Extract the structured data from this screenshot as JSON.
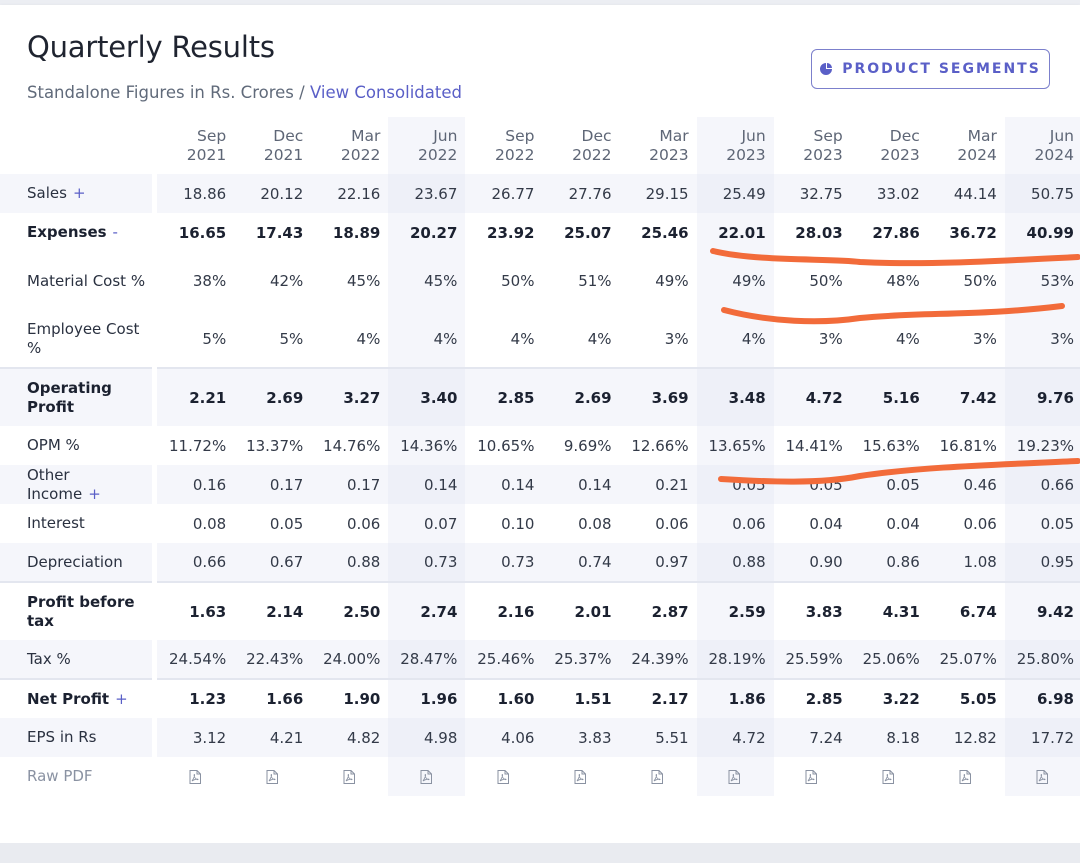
{
  "header": {
    "title": "Quarterly Results",
    "subtitle_prefix": "Standalone Figures in Rs. Crores / ",
    "subtitle_link": "View Consolidated",
    "segments_button": "PRODUCT SEGMENTS"
  },
  "quarters": [
    {
      "month": "Sep",
      "year": "2021"
    },
    {
      "month": "Dec",
      "year": "2021"
    },
    {
      "month": "Mar",
      "year": "2022"
    },
    {
      "month": "Jun",
      "year": "2022"
    },
    {
      "month": "Sep",
      "year": "2022"
    },
    {
      "month": "Dec",
      "year": "2022"
    },
    {
      "month": "Mar",
      "year": "2023"
    },
    {
      "month": "Jun",
      "year": "2023"
    },
    {
      "month": "Sep",
      "year": "2023"
    },
    {
      "month": "Dec",
      "year": "2023"
    },
    {
      "month": "Mar",
      "year": "2024"
    },
    {
      "month": "Jun",
      "year": "2024"
    }
  ],
  "rows": [
    {
      "label": "Sales",
      "suffix": "+",
      "style": "alt",
      "values": [
        "18.86",
        "20.12",
        "22.16",
        "23.67",
        "26.77",
        "27.76",
        "29.15",
        "25.49",
        "32.75",
        "33.02",
        "44.14",
        "50.75"
      ]
    },
    {
      "label": "Expenses",
      "suffix": "-",
      "style": "bold",
      "values": [
        "16.65",
        "17.43",
        "18.89",
        "20.27",
        "23.92",
        "25.07",
        "25.46",
        "22.01",
        "28.03",
        "27.86",
        "36.72",
        "40.99"
      ]
    },
    {
      "label": "Material Cost %",
      "suffix": "",
      "style": "tall",
      "values": [
        "38%",
        "42%",
        "45%",
        "45%",
        "50%",
        "51%",
        "49%",
        "49%",
        "50%",
        "48%",
        "50%",
        "53%"
      ]
    },
    {
      "label": "Employee Cost %",
      "suffix": "",
      "style": "tall",
      "values": [
        "5%",
        "5%",
        "4%",
        "4%",
        "4%",
        "4%",
        "3%",
        "4%",
        "3%",
        "4%",
        "3%",
        "3%"
      ]
    },
    {
      "label": "Operating Profit",
      "suffix": "",
      "style": "bold tall alt sep",
      "values": [
        "2.21",
        "2.69",
        "3.27",
        "3.40",
        "2.85",
        "2.69",
        "3.69",
        "3.48",
        "4.72",
        "5.16",
        "7.42",
        "9.76"
      ]
    },
    {
      "label": "OPM %",
      "suffix": "",
      "style": "",
      "values": [
        "11.72%",
        "13.37%",
        "14.76%",
        "14.36%",
        "10.65%",
        "9.69%",
        "12.66%",
        "13.65%",
        "14.41%",
        "15.63%",
        "16.81%",
        "19.23%"
      ]
    },
    {
      "label": "Other Income",
      "suffix": "+",
      "style": "alt",
      "values": [
        "0.16",
        "0.17",
        "0.17",
        "0.14",
        "0.14",
        "0.14",
        "0.21",
        "0.05",
        "0.05",
        "0.05",
        "0.46",
        "0.66"
      ]
    },
    {
      "label": "Interest",
      "suffix": "",
      "style": "",
      "values": [
        "0.08",
        "0.05",
        "0.06",
        "0.07",
        "0.10",
        "0.08",
        "0.06",
        "0.06",
        "0.04",
        "0.04",
        "0.06",
        "0.05"
      ]
    },
    {
      "label": "Depreciation",
      "suffix": "",
      "style": "alt",
      "values": [
        "0.66",
        "0.67",
        "0.88",
        "0.73",
        "0.73",
        "0.74",
        "0.97",
        "0.88",
        "0.90",
        "0.86",
        "1.08",
        "0.95"
      ]
    },
    {
      "label": "Profit before tax",
      "suffix": "",
      "style": "bold tall sep",
      "values": [
        "1.63",
        "2.14",
        "2.50",
        "2.74",
        "2.16",
        "2.01",
        "2.87",
        "2.59",
        "3.83",
        "4.31",
        "6.74",
        "9.42"
      ]
    },
    {
      "label": "Tax %",
      "suffix": "",
      "style": "alt",
      "values": [
        "24.54%",
        "22.43%",
        "24.00%",
        "28.47%",
        "25.46%",
        "25.37%",
        "24.39%",
        "28.19%",
        "25.59%",
        "25.06%",
        "25.07%",
        "25.80%"
      ]
    },
    {
      "label": "Net Profit",
      "suffix": "+",
      "style": "bold sep",
      "values": [
        "1.23",
        "1.66",
        "1.90",
        "1.96",
        "1.60",
        "1.51",
        "2.17",
        "1.86",
        "2.85",
        "3.22",
        "5.05",
        "6.98"
      ]
    },
    {
      "label": "EPS in Rs",
      "suffix": "",
      "style": "alt",
      "values": [
        "3.12",
        "4.21",
        "4.82",
        "4.98",
        "4.06",
        "3.83",
        "5.51",
        "4.72",
        "7.24",
        "8.18",
        "12.82",
        "17.72"
      ]
    },
    {
      "label": "Raw PDF",
      "suffix": "",
      "style": "pdf",
      "values": []
    }
  ],
  "colors": {
    "accent": "#5a5fc7",
    "annotation": "#f26b3a"
  },
  "icons": {
    "segments": "pie-chart-icon",
    "pdf": "pdf-file-icon"
  }
}
